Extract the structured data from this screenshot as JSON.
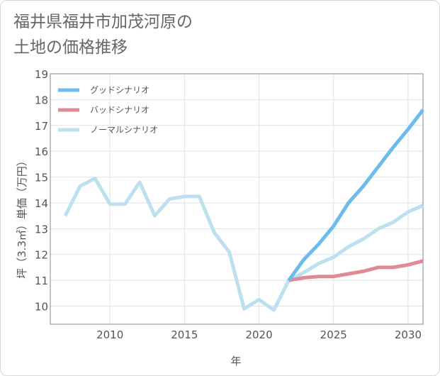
{
  "title": {
    "line1": "福井県福井市加茂河原の",
    "line2": "土地の価格推移"
  },
  "chart_data": {
    "type": "line",
    "title": "福井県福井市加茂河原の土地の価格推移",
    "xlabel": "年",
    "ylabel": "坪（3.3㎡）単価（万円）",
    "xlim": [
      2006,
      2031
    ],
    "ylim": [
      9.3,
      19
    ],
    "x_ticks": [
      2010,
      2015,
      2020,
      2025,
      2030
    ],
    "y_ticks": [
      10,
      11,
      12,
      13,
      14,
      15,
      16,
      17,
      18,
      19
    ],
    "grid": true,
    "legend_position": "top-left",
    "series": [
      {
        "name": "グッドシナリオ",
        "color": "#6bbcea",
        "x": [
          2022,
          2023,
          2024,
          2025,
          2026,
          2027,
          2028,
          2029,
          2030,
          2031
        ],
        "values": [
          11.0,
          11.8,
          12.4,
          13.1,
          14.0,
          14.65,
          15.4,
          16.15,
          16.85,
          17.6
        ]
      },
      {
        "name": "バッドシナリオ",
        "color": "#de8b93",
        "x": [
          2022,
          2023,
          2024,
          2025,
          2026,
          2027,
          2028,
          2029,
          2030,
          2031
        ],
        "values": [
          11.0,
          11.1,
          11.15,
          11.15,
          11.25,
          11.35,
          11.5,
          11.5,
          11.6,
          11.75
        ]
      },
      {
        "name": "ノーマルシナリオ",
        "color": "#bde0ee",
        "x": [
          2007,
          2008,
          2009,
          2010,
          2011,
          2012,
          2013,
          2014,
          2015,
          2016,
          2017,
          2018,
          2019,
          2020,
          2021,
          2022,
          2023,
          2024,
          2025,
          2026,
          2027,
          2028,
          2029,
          2030,
          2031
        ],
        "values": [
          13.5,
          14.65,
          14.95,
          13.95,
          13.95,
          14.8,
          13.5,
          14.15,
          14.25,
          14.25,
          12.85,
          12.1,
          9.9,
          10.25,
          9.85,
          11.0,
          11.3,
          11.65,
          11.9,
          12.3,
          12.6,
          13.0,
          13.25,
          13.65,
          13.9
        ]
      }
    ]
  }
}
